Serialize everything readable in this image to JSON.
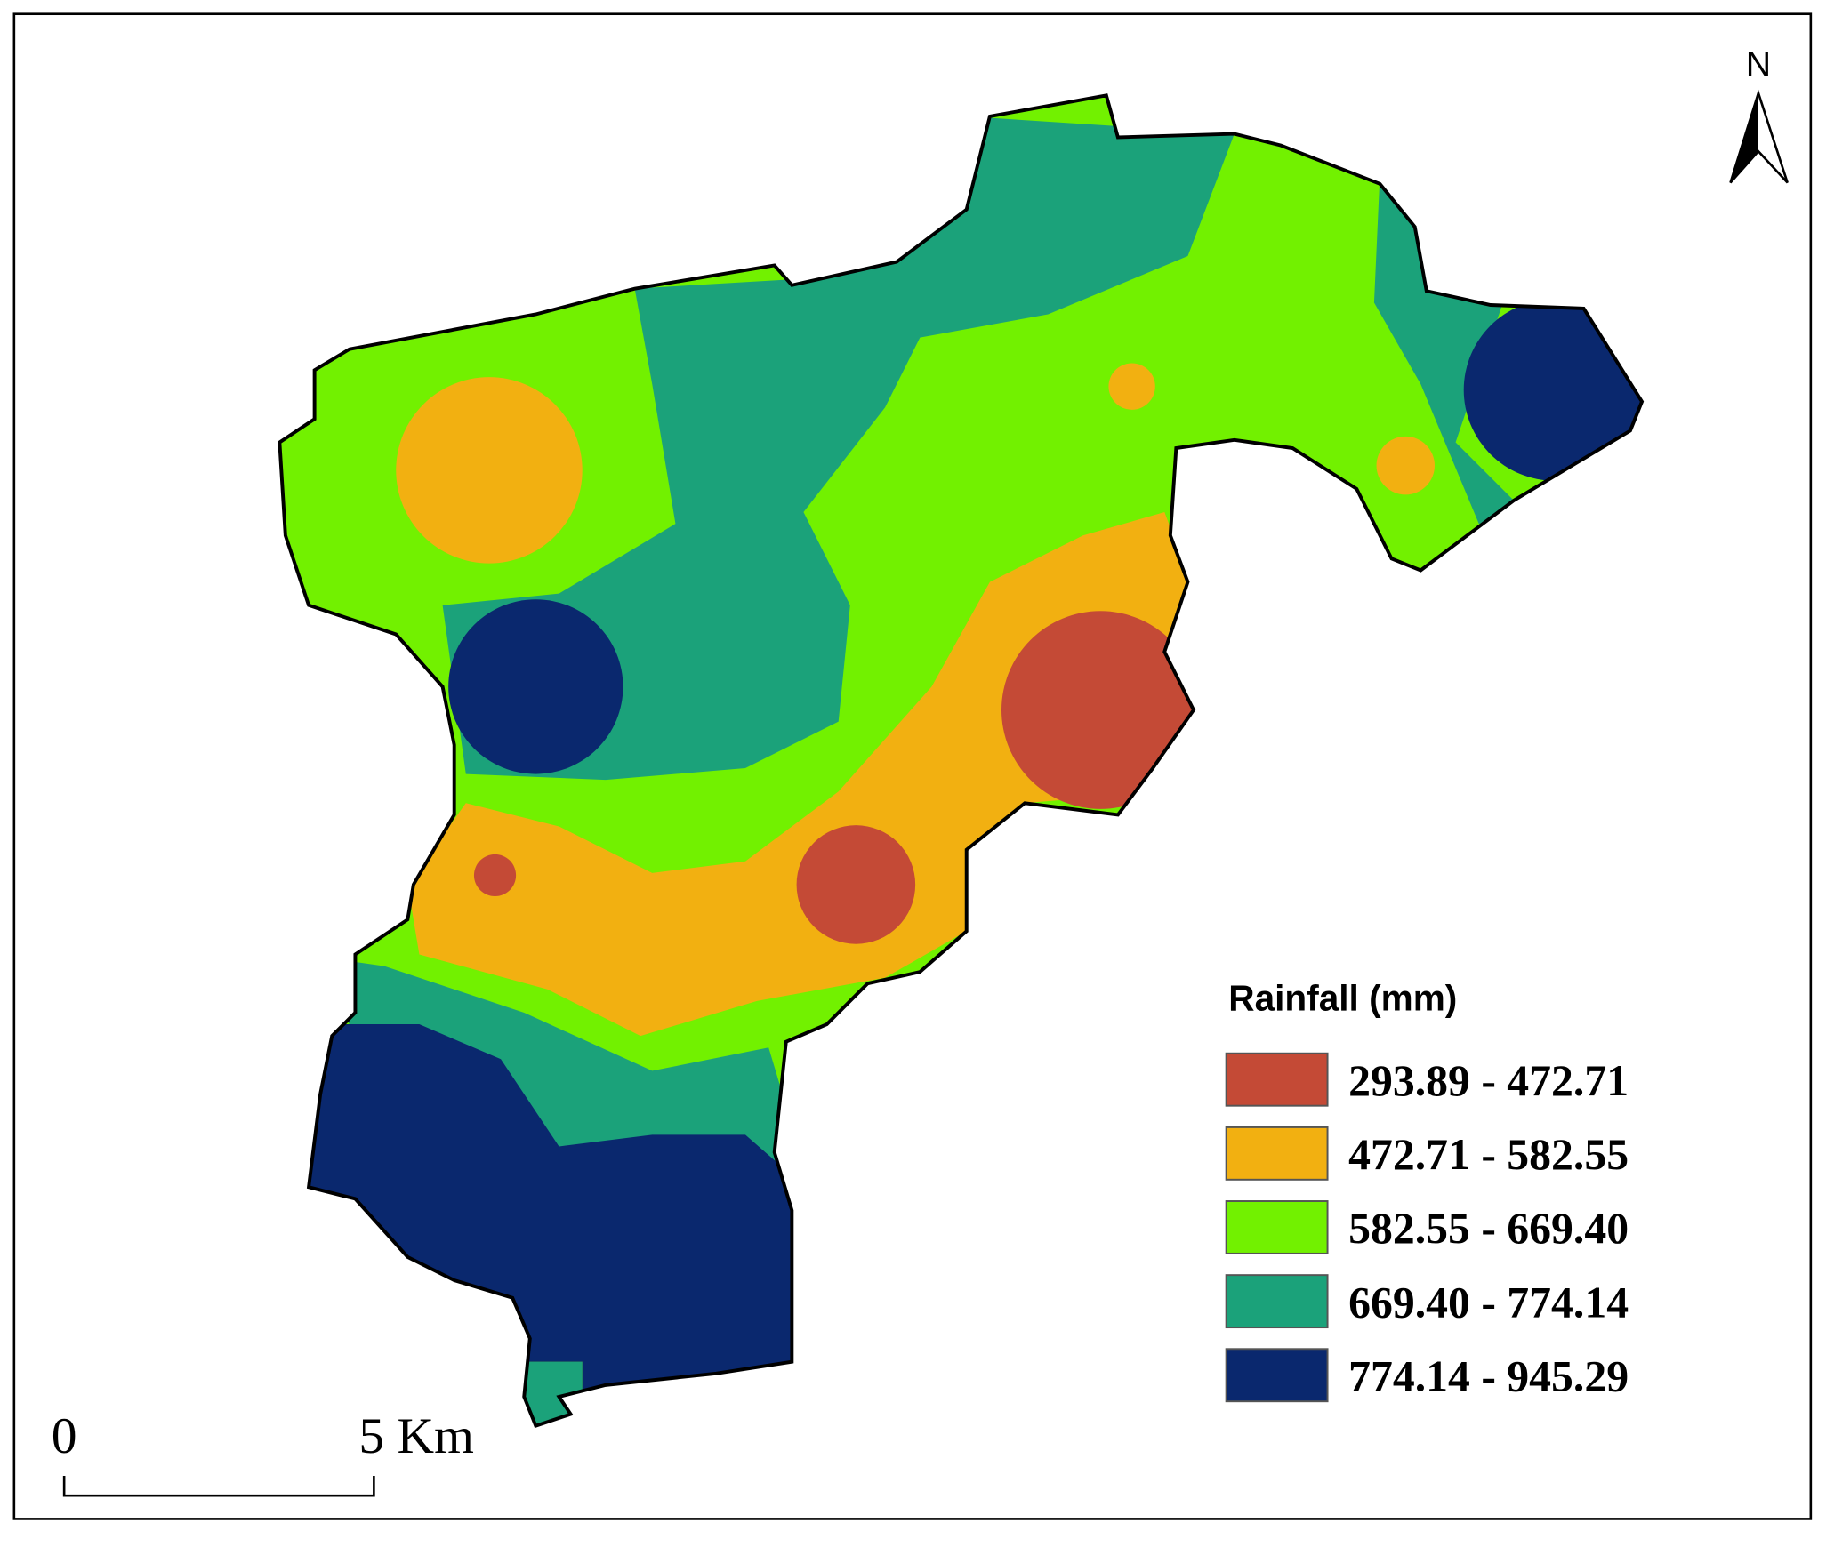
{
  "map": {
    "north": "N",
    "legend": {
      "title": "Rainfall (mm)",
      "items": [
        {
          "label": "293.89 - 472.71",
          "color": "#c44a36"
        },
        {
          "label": "472.71 - 582.55",
          "color": "#f2b011"
        },
        {
          "label": "582.55 - 669.40",
          "color": "#72f100"
        },
        {
          "label": "669.40 - 774.14",
          "color": "#1ba27a"
        },
        {
          "label": "774.14 - 945.29",
          "color": "#0a286e"
        }
      ]
    },
    "scale_bar": {
      "labels": [
        "0",
        "5 Km"
      ]
    }
  }
}
